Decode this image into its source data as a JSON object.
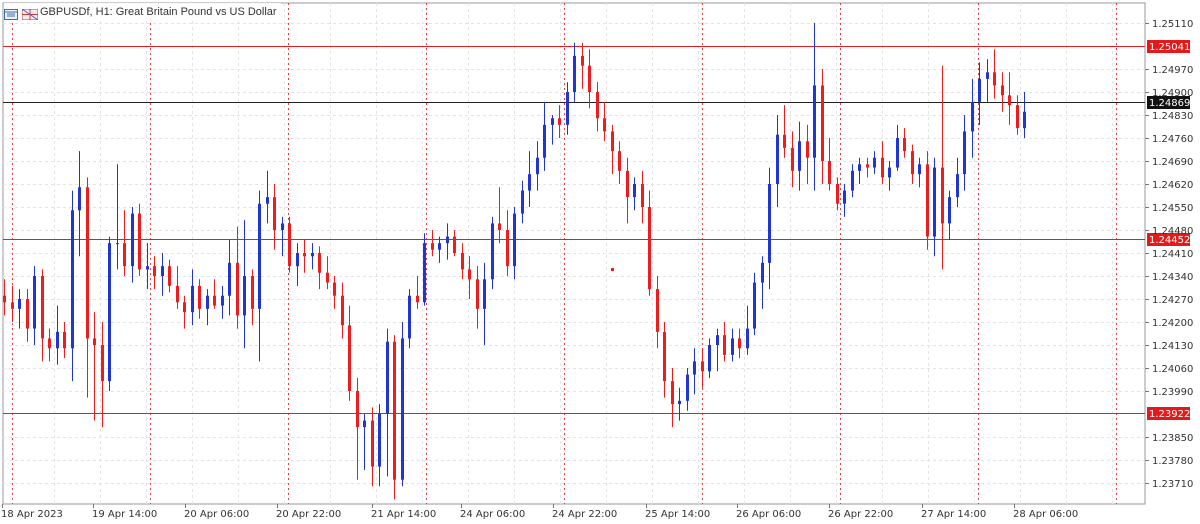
{
  "header": {
    "title": "GBPUSDf, H1:  Great Britain Pound vs US Dollar"
  },
  "colors": {
    "bull": "#1f35d6",
    "bear": "#ee1c1c",
    "level_line": "#e02020",
    "current_line": "#222222",
    "grid": "#e4e4e4",
    "session_line": "#e04040",
    "axis_text": "#333333",
    "tag_bg": "#e41a1a",
    "tag_text": "#ffffff",
    "current_tag_bg": "#111111"
  },
  "chart_data": {
    "type": "candlestick",
    "symbol": "GBPUSDf",
    "timeframe": "H1",
    "y_ticks": [
      "1.25110",
      "1.24970",
      "1.24900",
      "1.24830",
      "1.24760",
      "1.24690",
      "1.24620",
      "1.24550",
      "1.24480",
      "1.24410",
      "1.24340",
      "1.24270",
      "1.24200",
      "1.24130",
      "1.24060",
      "1.23990",
      "1.23850",
      "1.23780",
      "1.23710"
    ],
    "x_ticks": [
      "18 Apr 2023",
      "19 Apr 14:00",
      "20 Apr 06:00",
      "20 Apr 22:00",
      "21 Apr 14:00",
      "24 Apr 06:00",
      "24 Apr 22:00",
      "25 Apr 14:00",
      "26 Apr 06:00",
      "26 Apr 22:00",
      "27 Apr 14:00",
      "28 Apr 06:00"
    ],
    "ylim": [
      1.2365,
      1.2518
    ],
    "levels": [
      {
        "price": 1.25041,
        "label": "1.25041"
      },
      {
        "price": 1.24452,
        "label": "1.24452"
      },
      {
        "price": 1.23922,
        "label": "1.23922"
      }
    ],
    "current_price": {
      "price": 1.24869,
      "label": "1.24869"
    },
    "candles": [
      [
        1.2428,
        1.2433,
        1.2422,
        1.2426
      ],
      [
        1.2426,
        1.2431,
        1.242,
        1.2424
      ],
      [
        1.2424,
        1.243,
        1.2418,
        1.2427
      ],
      [
        1.2427,
        1.243,
        1.2414,
        1.2418
      ],
      [
        1.2418,
        1.2437,
        1.2413,
        1.2434
      ],
      [
        1.2434,
        1.2436,
        1.2408,
        1.2415
      ],
      [
        1.2415,
        1.2418,
        1.2408,
        1.2412
      ],
      [
        1.2412,
        1.2425,
        1.2407,
        1.2417
      ],
      [
        1.2417,
        1.242,
        1.2409,
        1.2412
      ],
      [
        1.2412,
        1.246,
        1.2402,
        1.2454
      ],
      [
        1.2454,
        1.2472,
        1.244,
        1.2461
      ],
      [
        1.2461,
        1.2464,
        1.2397,
        1.2415
      ],
      [
        1.2415,
        1.2423,
        1.239,
        1.2413
      ],
      [
        1.2413,
        1.242,
        1.2388,
        1.2402
      ],
      [
        1.2402,
        1.2446,
        1.2399,
        1.2444
      ],
      [
        1.2444,
        1.2468,
        1.2436,
        1.2444
      ],
      [
        1.2444,
        1.2454,
        1.2434,
        1.2437
      ],
      [
        1.2437,
        1.2455,
        1.2432,
        1.2453
      ],
      [
        1.2453,
        1.2456,
        1.2434,
        1.2436
      ],
      [
        1.2436,
        1.2444,
        1.243,
        1.2437
      ],
      [
        1.2437,
        1.244,
        1.243,
        1.2434
      ],
      [
        1.2434,
        1.2441,
        1.2428,
        1.2437
      ],
      [
        1.2437,
        1.2439,
        1.2429,
        1.2431
      ],
      [
        1.2431,
        1.2437,
        1.2424,
        1.2426
      ],
      [
        1.2426,
        1.2428,
        1.2418,
        1.2423
      ],
      [
        1.2423,
        1.2436,
        1.2419,
        1.2431
      ],
      [
        1.2431,
        1.2433,
        1.2421,
        1.2424
      ],
      [
        1.2424,
        1.243,
        1.2419,
        1.2428
      ],
      [
        1.2428,
        1.2433,
        1.2424,
        1.2425
      ],
      [
        1.2425,
        1.2431,
        1.2421,
        1.2428
      ],
      [
        1.2428,
        1.2445,
        1.2422,
        1.2438
      ],
      [
        1.2438,
        1.2449,
        1.2418,
        1.2422
      ],
      [
        1.2422,
        1.2451,
        1.2412,
        1.2434
      ],
      [
        1.2434,
        1.2436,
        1.2419,
        1.2424
      ],
      [
        1.2424,
        1.246,
        1.2408,
        1.2456
      ],
      [
        1.2456,
        1.2466,
        1.245,
        1.2458
      ],
      [
        1.2458,
        1.2462,
        1.2442,
        1.2448
      ],
      [
        1.2448,
        1.2452,
        1.244,
        1.245
      ],
      [
        1.245,
        1.2452,
        1.2435,
        1.2437
      ],
      [
        1.2437,
        1.2444,
        1.2431,
        1.2441
      ],
      [
        1.2441,
        1.2445,
        1.2435,
        1.244
      ],
      [
        1.244,
        1.2444,
        1.2436,
        1.2441
      ],
      [
        1.2441,
        1.2443,
        1.243,
        1.2435
      ],
      [
        1.2435,
        1.244,
        1.243,
        1.2432
      ],
      [
        1.2432,
        1.2434,
        1.2424,
        1.2428
      ],
      [
        1.2428,
        1.2432,
        1.2415,
        1.2419
      ],
      [
        1.2419,
        1.2425,
        1.2396,
        1.2399
      ],
      [
        1.2399,
        1.2403,
        1.2372,
        1.2388
      ],
      [
        1.2388,
        1.2392,
        1.2375,
        1.239
      ],
      [
        1.239,
        1.2394,
        1.237,
        1.2376
      ],
      [
        1.2376,
        1.2395,
        1.237,
        1.2392
      ],
      [
        1.2392,
        1.2418,
        1.2373,
        1.2414
      ],
      [
        1.2414,
        1.2416,
        1.2366,
        1.2372
      ],
      [
        1.2372,
        1.242,
        1.237,
        1.2415
      ],
      [
        1.2415,
        1.243,
        1.2412,
        1.2428
      ],
      [
        1.2428,
        1.2434,
        1.2424,
        1.2426
      ],
      [
        1.2426,
        1.2447,
        1.2425,
        1.2444
      ],
      [
        1.2444,
        1.2448,
        1.244,
        1.2442
      ],
      [
        1.2442,
        1.2446,
        1.2438,
        1.2444
      ],
      [
        1.2444,
        1.245,
        1.2439,
        1.2446
      ],
      [
        1.2446,
        1.2448,
        1.244,
        1.2441
      ],
      [
        1.2441,
        1.2444,
        1.2433,
        1.2436
      ],
      [
        1.2436,
        1.244,
        1.2427,
        1.2433
      ],
      [
        1.2433,
        1.2437,
        1.2418,
        1.2424
      ],
      [
        1.2424,
        1.2438,
        1.2413,
        1.2433
      ],
      [
        1.2433,
        1.2452,
        1.243,
        1.245
      ],
      [
        1.245,
        1.2461,
        1.2444,
        1.2448
      ],
      [
        1.2448,
        1.2454,
        1.2434,
        1.2437
      ],
      [
        1.2437,
        1.2455,
        1.2433,
        1.2453
      ],
      [
        1.2453,
        1.2463,
        1.245,
        1.246
      ],
      [
        1.246,
        1.2472,
        1.2455,
        1.2465
      ],
      [
        1.2465,
        1.2475,
        1.246,
        1.247
      ],
      [
        1.247,
        1.2487,
        1.2466,
        1.248
      ],
      [
        1.248,
        1.2483,
        1.2474,
        1.2482
      ],
      [
        1.2482,
        1.2486,
        1.2476,
        1.248
      ],
      [
        1.248,
        1.2493,
        1.2477,
        1.249
      ],
      [
        1.249,
        1.2505,
        1.2487,
        1.2501
      ],
      [
        1.2501,
        1.2505,
        1.2491,
        1.2498
      ],
      [
        1.2498,
        1.2503,
        1.2485,
        1.249
      ],
      [
        1.249,
        1.2493,
        1.2478,
        1.2482
      ],
      [
        1.2482,
        1.2487,
        1.2475,
        1.2478
      ],
      [
        1.2478,
        1.248,
        1.2465,
        1.2472
      ],
      [
        1.2472,
        1.2475,
        1.2462,
        1.2466
      ],
      [
        1.2466,
        1.247,
        1.245,
        1.2458
      ],
      [
        1.2458,
        1.2464,
        1.2454,
        1.2462
      ],
      [
        1.2462,
        1.2466,
        1.245,
        1.2455
      ],
      [
        1.2455,
        1.246,
        1.2428,
        1.243
      ],
      [
        1.243,
        1.2434,
        1.2412,
        1.2417
      ],
      [
        1.2417,
        1.242,
        1.2397,
        1.2402
      ],
      [
        1.2402,
        1.2406,
        1.2388,
        1.2395
      ],
      [
        1.2395,
        1.24,
        1.239,
        1.2396
      ],
      [
        1.2396,
        1.2406,
        1.2393,
        1.2404
      ],
      [
        1.2404,
        1.2412,
        1.2398,
        1.2408
      ],
      [
        1.2408,
        1.2412,
        1.24,
        1.2405
      ],
      [
        1.2405,
        1.2415,
        1.2403,
        1.2413
      ],
      [
        1.2413,
        1.2418,
        1.2405,
        1.2416
      ],
      [
        1.2416,
        1.242,
        1.2408,
        1.241
      ],
      [
        1.241,
        1.2418,
        1.2408,
        1.2415
      ],
      [
        1.2415,
        1.2418,
        1.2409,
        1.2412
      ],
      [
        1.2412,
        1.2425,
        1.241,
        1.2418
      ],
      [
        1.2418,
        1.2435,
        1.2416,
        1.2432
      ],
      [
        1.2432,
        1.244,
        1.2424,
        1.2438
      ],
      [
        1.2438,
        1.2467,
        1.243,
        1.2462
      ],
      [
        1.2462,
        1.2483,
        1.2455,
        1.2477
      ],
      [
        1.2477,
        1.2486,
        1.247,
        1.2473
      ],
      [
        1.2473,
        1.2478,
        1.2461,
        1.2466
      ],
      [
        1.2466,
        1.2481,
        1.246,
        1.2475
      ],
      [
        1.2475,
        1.248,
        1.2462,
        1.247
      ],
      [
        1.247,
        1.2511,
        1.246,
        1.2492
      ],
      [
        1.2492,
        1.2497,
        1.2462,
        1.2469
      ],
      [
        1.2469,
        1.2476,
        1.246,
        1.2462
      ],
      [
        1.2462,
        1.2464,
        1.2454,
        1.2456
      ],
      [
        1.2456,
        1.2462,
        1.2452,
        1.246
      ],
      [
        1.246,
        1.2468,
        1.2458,
        1.2466
      ],
      [
        1.2466,
        1.247,
        1.2462,
        1.2468
      ],
      [
        1.2468,
        1.247,
        1.2464,
        1.2467
      ],
      [
        1.2467,
        1.2472,
        1.2465,
        1.247
      ],
      [
        1.247,
        1.2475,
        1.2462,
        1.2464
      ],
      [
        1.2464,
        1.2469,
        1.246,
        1.2467
      ],
      [
        1.2467,
        1.248,
        1.2466,
        1.2476
      ],
      [
        1.2476,
        1.2479,
        1.247,
        1.2472
      ],
      [
        1.2472,
        1.2474,
        1.2462,
        1.2465
      ],
      [
        1.2465,
        1.247,
        1.2461,
        1.2468
      ],
      [
        1.2468,
        1.2472,
        1.2442,
        1.2446
      ],
      [
        1.2446,
        1.247,
        1.244,
        1.2467
      ],
      [
        1.2467,
        1.2498,
        1.2436,
        1.245
      ],
      [
        1.245,
        1.246,
        1.2445,
        1.2458
      ],
      [
        1.2458,
        1.247,
        1.2455,
        1.2465
      ],
      [
        1.2465,
        1.2483,
        1.246,
        1.2478
      ],
      [
        1.2478,
        1.2494,
        1.247,
        1.2487
      ],
      [
        1.2487,
        1.2499,
        1.248,
        1.2494
      ],
      [
        1.2494,
        1.25,
        1.2487,
        1.2496
      ],
      [
        1.2496,
        1.2503,
        1.2488,
        1.2492
      ],
      [
        1.2492,
        1.2496,
        1.2484,
        1.2489
      ],
      [
        1.2489,
        1.2496,
        1.248,
        1.2486
      ],
      [
        1.2486,
        1.2489,
        1.2477,
        1.2479
      ],
      [
        1.2479,
        1.249,
        1.2476,
        1.2484
      ]
    ]
  }
}
